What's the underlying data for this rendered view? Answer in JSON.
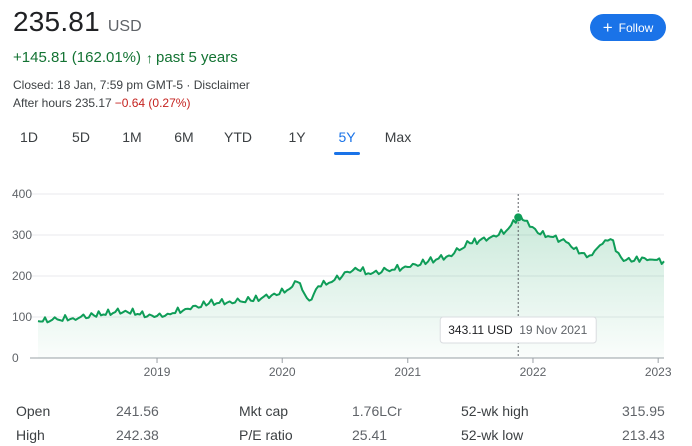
{
  "quote": {
    "price": "235.81",
    "currency": "USD",
    "change": "+145.81 (162.01%)",
    "change_arrow": "↑",
    "change_period": "past 5 years",
    "closed_text": "Closed: 18 Jan, 7:59 pm GMT-5 · ",
    "disclaimer": "Disclaimer",
    "after_hours_label": "After hours 235.17",
    "after_hours_change": "−0.64 (0.27%)"
  },
  "follow": {
    "label": "Follow",
    "icon": "plus-icon"
  },
  "tabs": [
    "1D",
    "5D",
    "1M",
    "6M",
    "YTD",
    "1Y",
    "5Y",
    "Max"
  ],
  "active_tab": "5Y",
  "colors": {
    "line": "#0f9d58",
    "positive": "#137333",
    "negative": "#c5221f",
    "accent": "#1a73e8"
  },
  "chart_data": {
    "type": "area",
    "y_ticks": [
      "400",
      "300",
      "200",
      "100",
      "0"
    ],
    "x_tick_labels": [
      "2019",
      "2020",
      "2021",
      "2022",
      "2023"
    ],
    "ylim": [
      0,
      400
    ],
    "xlim": [
      "2018-01-19",
      "2023-01-18"
    ],
    "series": [
      {
        "x": [
          "2018-01-19",
          "2018-03-01",
          "2018-05-01",
          "2018-07-01",
          "2018-09-01",
          "2018-10-01",
          "2018-12-24",
          "2019-02-01",
          "2019-04-01",
          "2019-06-01",
          "2019-08-01",
          "2019-10-01",
          "2019-12-01",
          "2020-01-15",
          "2020-02-15",
          "2020-03-20",
          "2020-04-15",
          "2020-06-01",
          "2020-08-01",
          "2020-09-15",
          "2020-11-01",
          "2021-01-01",
          "2021-03-01",
          "2021-05-01",
          "2021-07-01",
          "2021-09-01",
          "2021-10-15",
          "2021-11-19",
          "2021-12-15",
          "2022-01-15",
          "2022-03-01",
          "2022-04-15",
          "2022-05-15",
          "2022-06-15",
          "2022-07-15",
          "2022-08-15",
          "2022-09-15",
          "2022-10-15",
          "2022-11-15",
          "2022-12-15",
          "2023-01-18"
        ],
        "y": [
          90,
          93,
          97,
          104,
          112,
          115,
          100,
          108,
          120,
          133,
          138,
          140,
          153,
          165,
          185,
          140,
          175,
          190,
          220,
          205,
          215,
          222,
          235,
          250,
          280,
          295,
          310,
          343.11,
          335,
          305,
          295,
          280,
          255,
          250,
          275,
          290,
          245,
          235,
          245,
          240,
          235.81
        ]
      }
    ],
    "highlight": {
      "value": "343.11 USD",
      "date": "19 Nov 2021",
      "x": "2021-11-19",
      "y": 343.11
    }
  },
  "stats": [
    {
      "label": "Open",
      "value": "241.56"
    },
    {
      "label": "High",
      "value": "242.38"
    },
    {
      "label": "Mkt cap",
      "value": "1.76LCr"
    },
    {
      "label": "P/E ratio",
      "value": "25.41"
    },
    {
      "label": "52-wk high",
      "value": "315.95"
    },
    {
      "label": "52-wk low",
      "value": "213.43"
    }
  ]
}
